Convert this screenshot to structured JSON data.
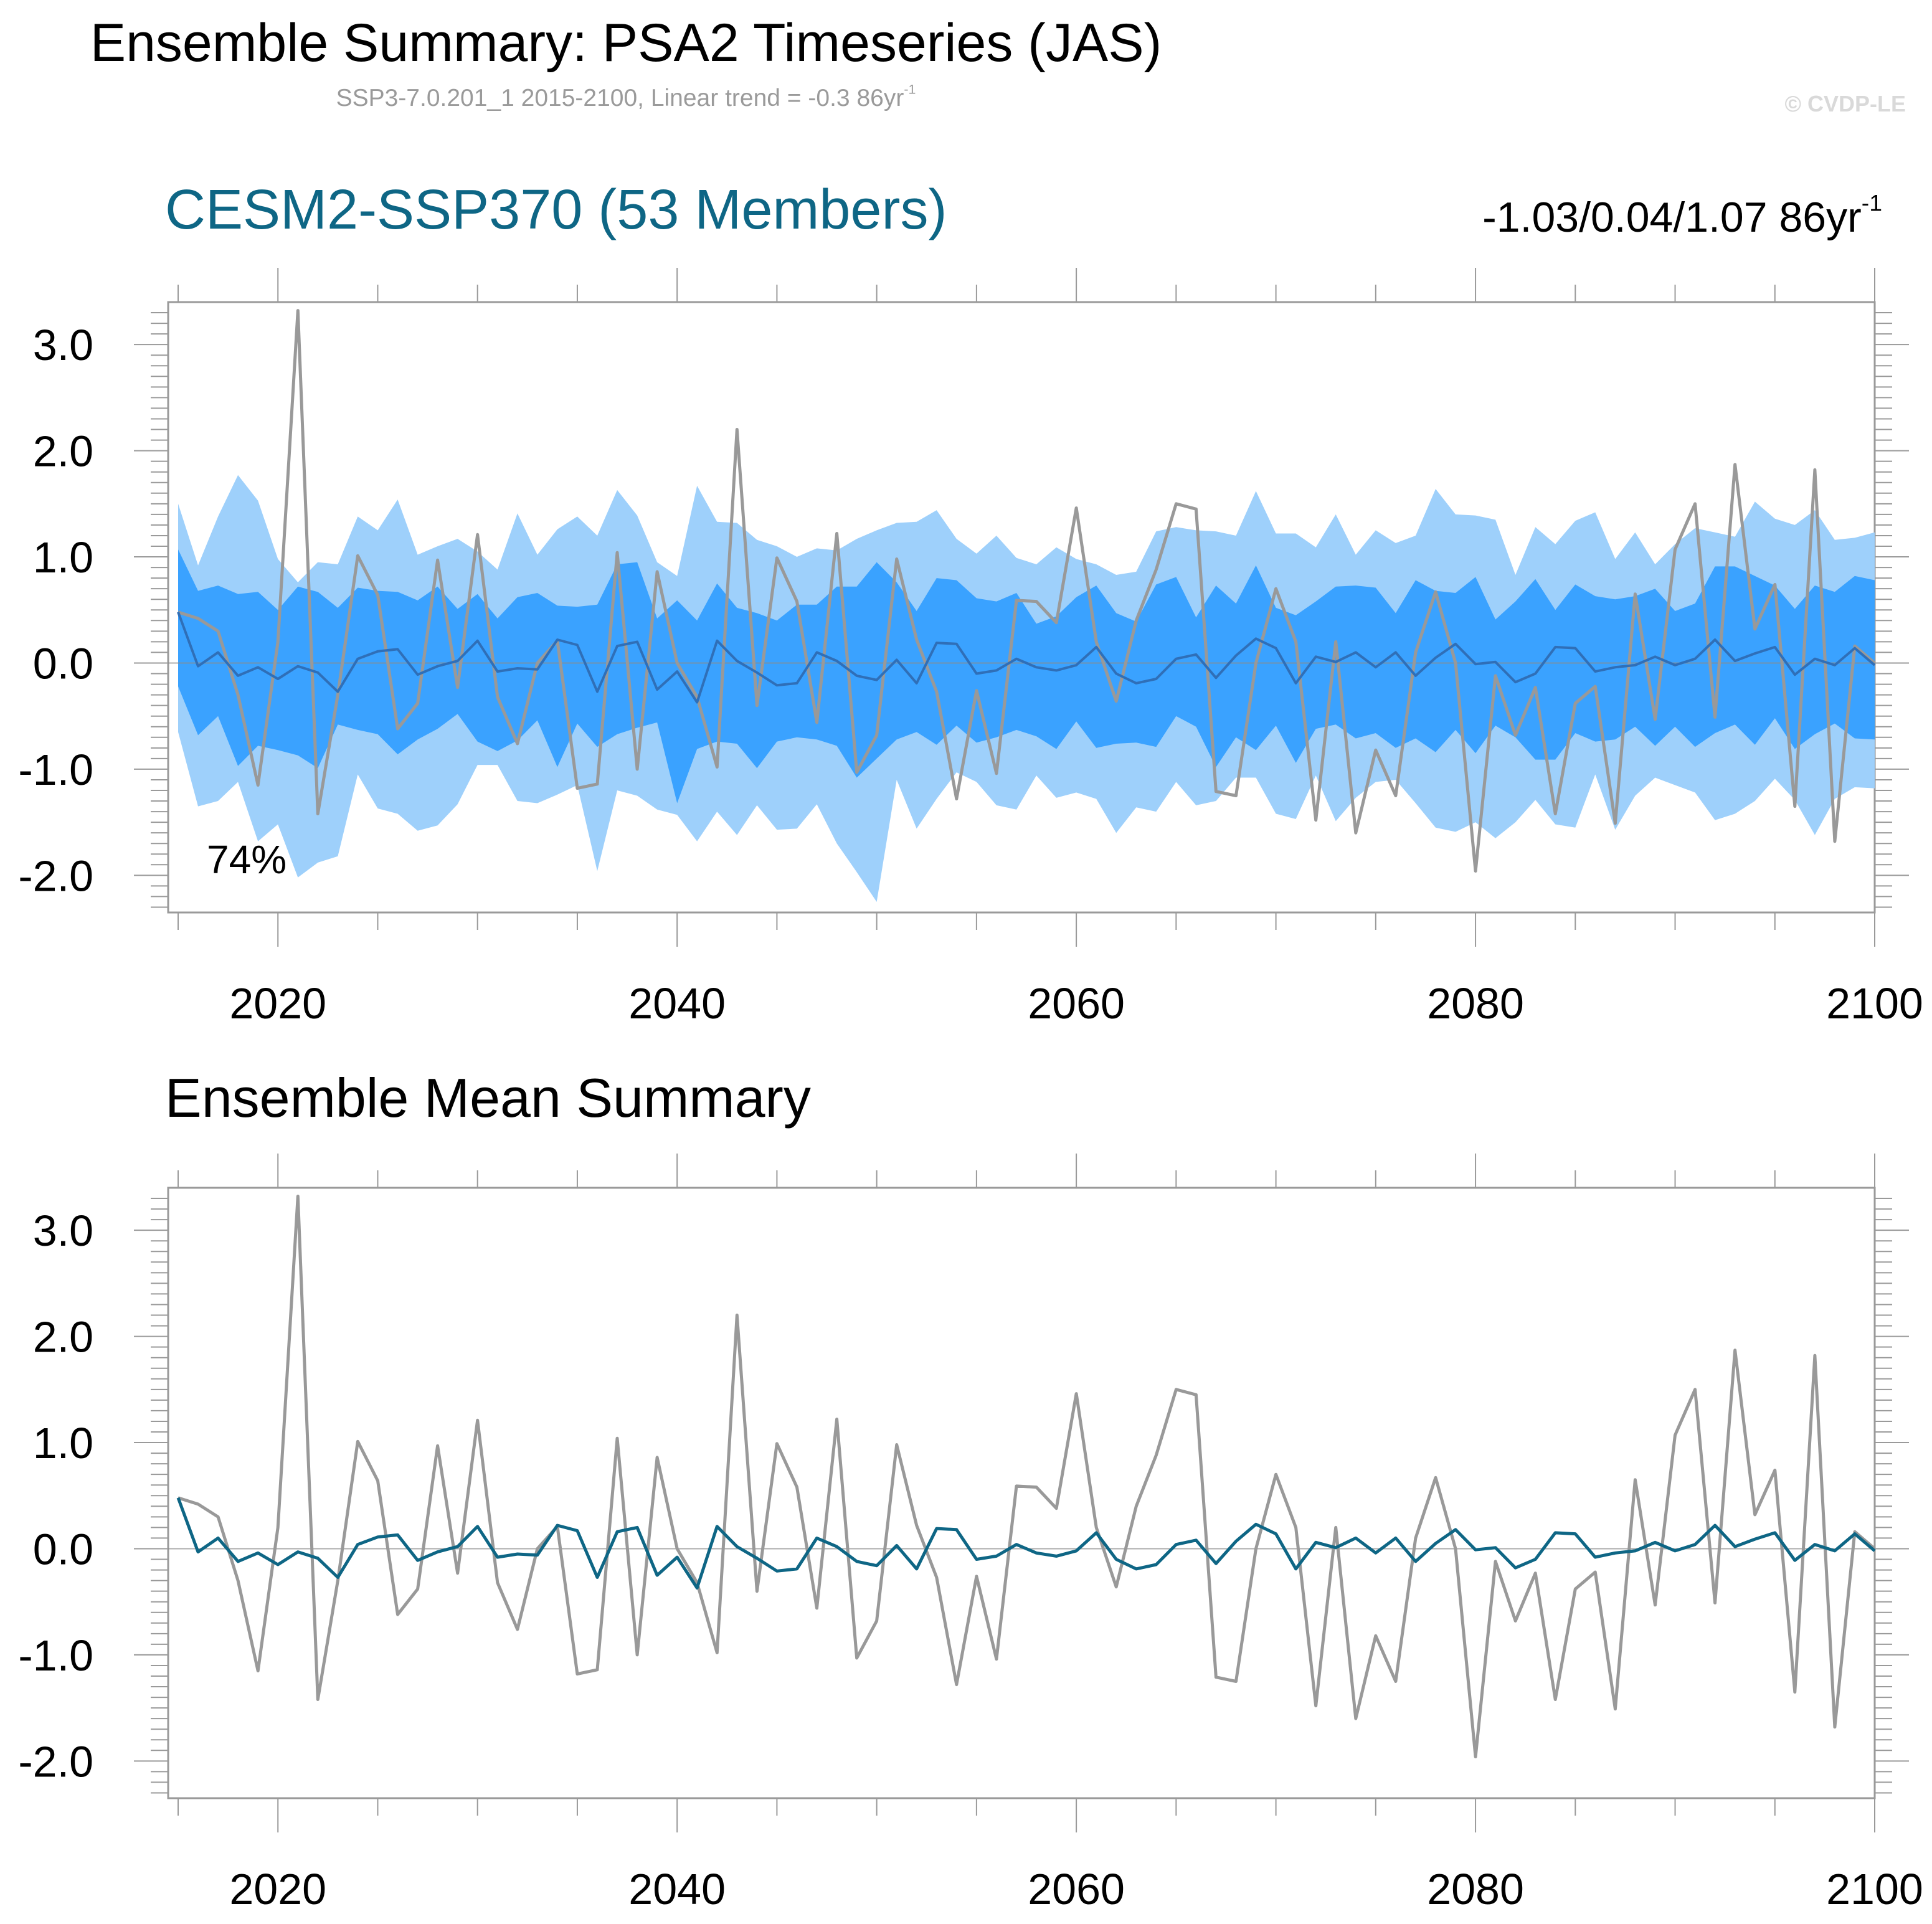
{
  "title": "Ensemble Summary: PSA2 Timeseries (JAS)",
  "subtitle": {
    "text": "SSP3-7.0.201_1 2015-2100, Linear trend = -0.3 86yr",
    "sup": "-1"
  },
  "watermark": "© CVDP-LE",
  "colors": {
    "outer_band": "#9ed0fb",
    "inner_band": "#3aa2ff",
    "ensemble_mean_panel1": "#2f6fb8",
    "ensemble_mean_panel2": "#0e6685",
    "observations": "#999999",
    "panel1_title": "#0e6685"
  },
  "chart_data": [
    {
      "type": "area",
      "title": "CESM2-SSP370 (53 Members)",
      "trend_label": {
        "text": "-1.03/0.04/1.07 86yr",
        "sup": "-1"
      },
      "annotation": "74%",
      "xlim": [
        2014,
        2100
      ],
      "ylim": [
        -2.35,
        3.4
      ],
      "x_ticks": [
        2020,
        2040,
        2060,
        2080,
        2100
      ],
      "x_tick_labels": [
        "2020",
        "2040",
        "2060",
        "2080",
        "2100"
      ],
      "y_ticks": [
        3.0,
        2.0,
        1.0,
        0.0,
        -1.0,
        -2.0
      ],
      "y_tick_labels": [
        "3.0",
        "2.0",
        "1.0",
        "0.0",
        "-1.0",
        "-2.0"
      ],
      "x_start": 2015,
      "series": [
        {
          "name": "",
          "values": [
            0.48,
            0.42,
            0.3,
            -0.3,
            -1.15,
            0.2,
            3.32,
            -1.42,
            -0.3,
            1.01,
            0.64,
            -0.62,
            -0.38,
            0.97,
            -0.23,
            1.21,
            -0.32,
            -0.76,
            0,
            0.21,
            -1.18,
            -1.14,
            1.04,
            -1.0,
            0.86,
            0.0,
            -0.32,
            -0.98,
            2.2,
            -0.4,
            0.99,
            0.58,
            -0.56,
            1.22,
            -1.03,
            -0.68,
            0.98,
            0.22,
            -0.27,
            -1.28,
            -0.26,
            -1.04,
            0.59,
            0.58,
            0.38,
            1.46,
            0.2,
            -0.36,
            0.4,
            0.88,
            1.5,
            1.45,
            -1.21,
            -1.25,
            0.0,
            0.7,
            0.2,
            -1.48,
            0.2,
            -1.6,
            -0.82,
            -1.25,
            0.1,
            0.67,
            0.0,
            -1.96,
            -0.12,
            -0.68,
            -0.23,
            -1.42,
            -0.38,
            -0.22,
            -1.51,
            0.65,
            -0.53,
            1.07,
            1.5,
            -0.51,
            1.87,
            0.32,
            0.74,
            -1.35,
            1.82,
            -1.68,
            0.16,
            0.0
          ]
        },
        {
          "name": "",
          "values": [
            0.48,
            -0.03,
            0.1,
            -0.12,
            -0.04,
            -0.15,
            -0.03,
            -0.09,
            -0.27,
            0.04,
            0.11,
            0.13,
            -0.11,
            -0.03,
            0.02,
            0.21,
            -0.08,
            -0.05,
            -0.06,
            0.22,
            0.17,
            -0.27,
            0.16,
            0.2,
            -0.25,
            -0.08,
            -0.37,
            0.21,
            0.02,
            -0.09,
            -0.21,
            -0.19,
            0.1,
            0.02,
            -0.12,
            -0.16,
            0.03,
            -0.19,
            0.19,
            0.18,
            -0.1,
            -0.07,
            0.04,
            -0.04,
            -0.07,
            -0.02,
            0.15,
            -0.1,
            -0.19,
            -0.15,
            0.04,
            0.08,
            -0.14,
            0.07,
            0.23,
            0.14,
            -0.19,
            0.06,
            0.01,
            0.1,
            -0.04,
            0.1,
            -0.12,
            0.05,
            0.18,
            -0.01,
            0.01,
            -0.18,
            -0.1,
            0.15,
            0.14,
            -0.08,
            -0.04,
            -0.02,
            0.06,
            -0.02,
            0.04,
            0.22,
            0.02,
            0.09,
            0.15,
            -0.11,
            0.04,
            -0.02,
            0.14,
            -0.02
          ]
        }
      ],
      "bands": {
        "outer": {
          "upper": [
            1.5,
            0.92,
            1.38,
            1.77,
            1.53,
            0.98,
            0.76,
            0.95,
            0.93,
            1.38,
            1.25,
            1.54,
            1.02,
            1.1,
            1.17,
            1.05,
            0.88,
            1.41,
            1.02,
            1.26,
            1.38,
            1.2,
            1.63,
            1.39,
            0.95,
            0.82,
            1.67,
            1.33,
            1.32,
            1.16,
            1.1,
            1.0,
            1.08,
            1.06,
            1.17,
            1.25,
            1.32,
            1.33,
            1.44,
            1.17,
            1.03,
            1.2,
            0.99,
            0.93,
            1.09,
            0.98,
            0.93,
            0.83,
            0.86,
            1.24,
            1.28,
            1.25,
            1.24,
            1.2,
            1.62,
            1.22,
            1.22,
            1.09,
            1.4,
            1.02,
            1.25,
            1.13,
            1.2,
            1.64,
            1.4,
            1.39,
            1.35,
            0.83,
            1.28,
            1.12,
            1.34,
            1.42,
            0.98,
            1.23,
            0.93,
            1.12,
            1.27,
            1.23,
            1.19,
            1.52,
            1.36,
            1.3,
            1.44,
            1.16,
            1.18,
            1.23
          ],
          "lower": [
            -0.65,
            -1.35,
            -1.3,
            -1.12,
            -1.68,
            -1.52,
            -2.02,
            -1.88,
            -1.82,
            -1.05,
            -1.37,
            -1.42,
            -1.58,
            -1.53,
            -1.33,
            -0.96,
            -0.96,
            -1.3,
            -1.32,
            -1.24,
            -1.15,
            -1.96,
            -1.2,
            -1.25,
            -1.38,
            -1.43,
            -1.68,
            -1.4,
            -1.62,
            -1.34,
            -1.57,
            -1.56,
            -1.33,
            -1.7,
            -1.97,
            -2.25,
            -1.1,
            -1.56,
            -1.28,
            -1.03,
            -1.12,
            -1.34,
            -1.38,
            -1.06,
            -1.27,
            -1.22,
            -1.28,
            -1.6,
            -1.36,
            -1.4,
            -1.12,
            -1.34,
            -1.3,
            -1.08,
            -1.08,
            -1.42,
            -1.47,
            -1.06,
            -1.49,
            -1.27,
            -1.12,
            -1.1,
            -1.32,
            -1.55,
            -1.59,
            -1.5,
            -1.65,
            -1.5,
            -1.29,
            -1.52,
            -1.55,
            -1.05,
            -1.57,
            -1.25,
            -1.08,
            -1.15,
            -1.22,
            -1.48,
            -1.42,
            -1.3,
            -1.09,
            -1.29,
            -1.62,
            -1.28,
            -1.17,
            -1.18
          ]
        },
        "inner": {
          "upper": [
            1.07,
            0.68,
            0.73,
            0.65,
            0.67,
            0.5,
            0.72,
            0.67,
            0.52,
            0.71,
            0.68,
            0.67,
            0.59,
            0.72,
            0.51,
            0.65,
            0.42,
            0.62,
            0.66,
            0.54,
            0.53,
            0.55,
            0.93,
            0.95,
            0.42,
            0.59,
            0.4,
            0.75,
            0.52,
            0.47,
            0.4,
            0.55,
            0.55,
            0.72,
            0.72,
            0.95,
            0.76,
            0.49,
            0.8,
            0.78,
            0.61,
            0.58,
            0.66,
            0.37,
            0.44,
            0.62,
            0.73,
            0.47,
            0.39,
            0.74,
            0.81,
            0.43,
            0.73,
            0.56,
            0.92,
            0.52,
            0.45,
            0.58,
            0.72,
            0.73,
            0.71,
            0.47,
            0.78,
            0.68,
            0.66,
            0.81,
            0.41,
            0.58,
            0.79,
            0.5,
            0.74,
            0.63,
            0.6,
            0.63,
            0.7,
            0.49,
            0.56,
            0.91,
            0.91,
            0.82,
            0.73,
            0.51,
            0.73,
            0.67,
            0.82,
            0.78
          ],
          "lower": [
            -0.22,
            -0.68,
            -0.5,
            -0.97,
            -0.78,
            -0.82,
            -0.87,
            -0.99,
            -0.58,
            -0.63,
            -0.67,
            -0.86,
            -0.72,
            -0.62,
            -0.48,
            -0.74,
            -0.83,
            -0.73,
            -0.54,
            -0.98,
            -0.57,
            -0.79,
            -0.67,
            -0.61,
            -0.56,
            -1.32,
            -0.81,
            -0.74,
            -0.76,
            -0.99,
            -0.74,
            -0.7,
            -0.72,
            -0.78,
            -1.08,
            -0.9,
            -0.72,
            -0.65,
            -0.77,
            -0.59,
            -0.75,
            -0.7,
            -0.63,
            -0.69,
            -0.81,
            -0.55,
            -0.8,
            -0.76,
            -0.75,
            -0.79,
            -0.5,
            -0.6,
            -0.98,
            -0.7,
            -0.82,
            -0.59,
            -0.94,
            -0.62,
            -0.58,
            -0.71,
            -0.66,
            -0.8,
            -0.71,
            -0.84,
            -0.63,
            -0.85,
            -0.59,
            -0.7,
            -0.91,
            -0.91,
            -0.66,
            -0.74,
            -0.72,
            -0.6,
            -0.78,
            -0.6,
            -0.79,
            -0.66,
            -0.58,
            -0.77,
            -0.52,
            -0.81,
            -0.67,
            -0.57,
            -0.71,
            -0.72
          ]
        }
      }
    },
    {
      "type": "line",
      "title": "Ensemble Mean Summary",
      "xlim": [
        2014,
        2100
      ],
      "ylim": [
        -2.35,
        3.4
      ],
      "x_ticks": [
        2020,
        2040,
        2060,
        2080,
        2100
      ],
      "x_tick_labels": [
        "2020",
        "2040",
        "2060",
        "2080",
        "2100"
      ],
      "y_ticks": [
        3.0,
        2.0,
        1.0,
        0.0,
        -1.0,
        -2.0
      ],
      "y_tick_labels": [
        "3.0",
        "2.0",
        "1.0",
        "0.0",
        "-1.0",
        "-2.0"
      ],
      "x_start": 2015,
      "series_ref": "same values as panel 1 series"
    }
  ]
}
